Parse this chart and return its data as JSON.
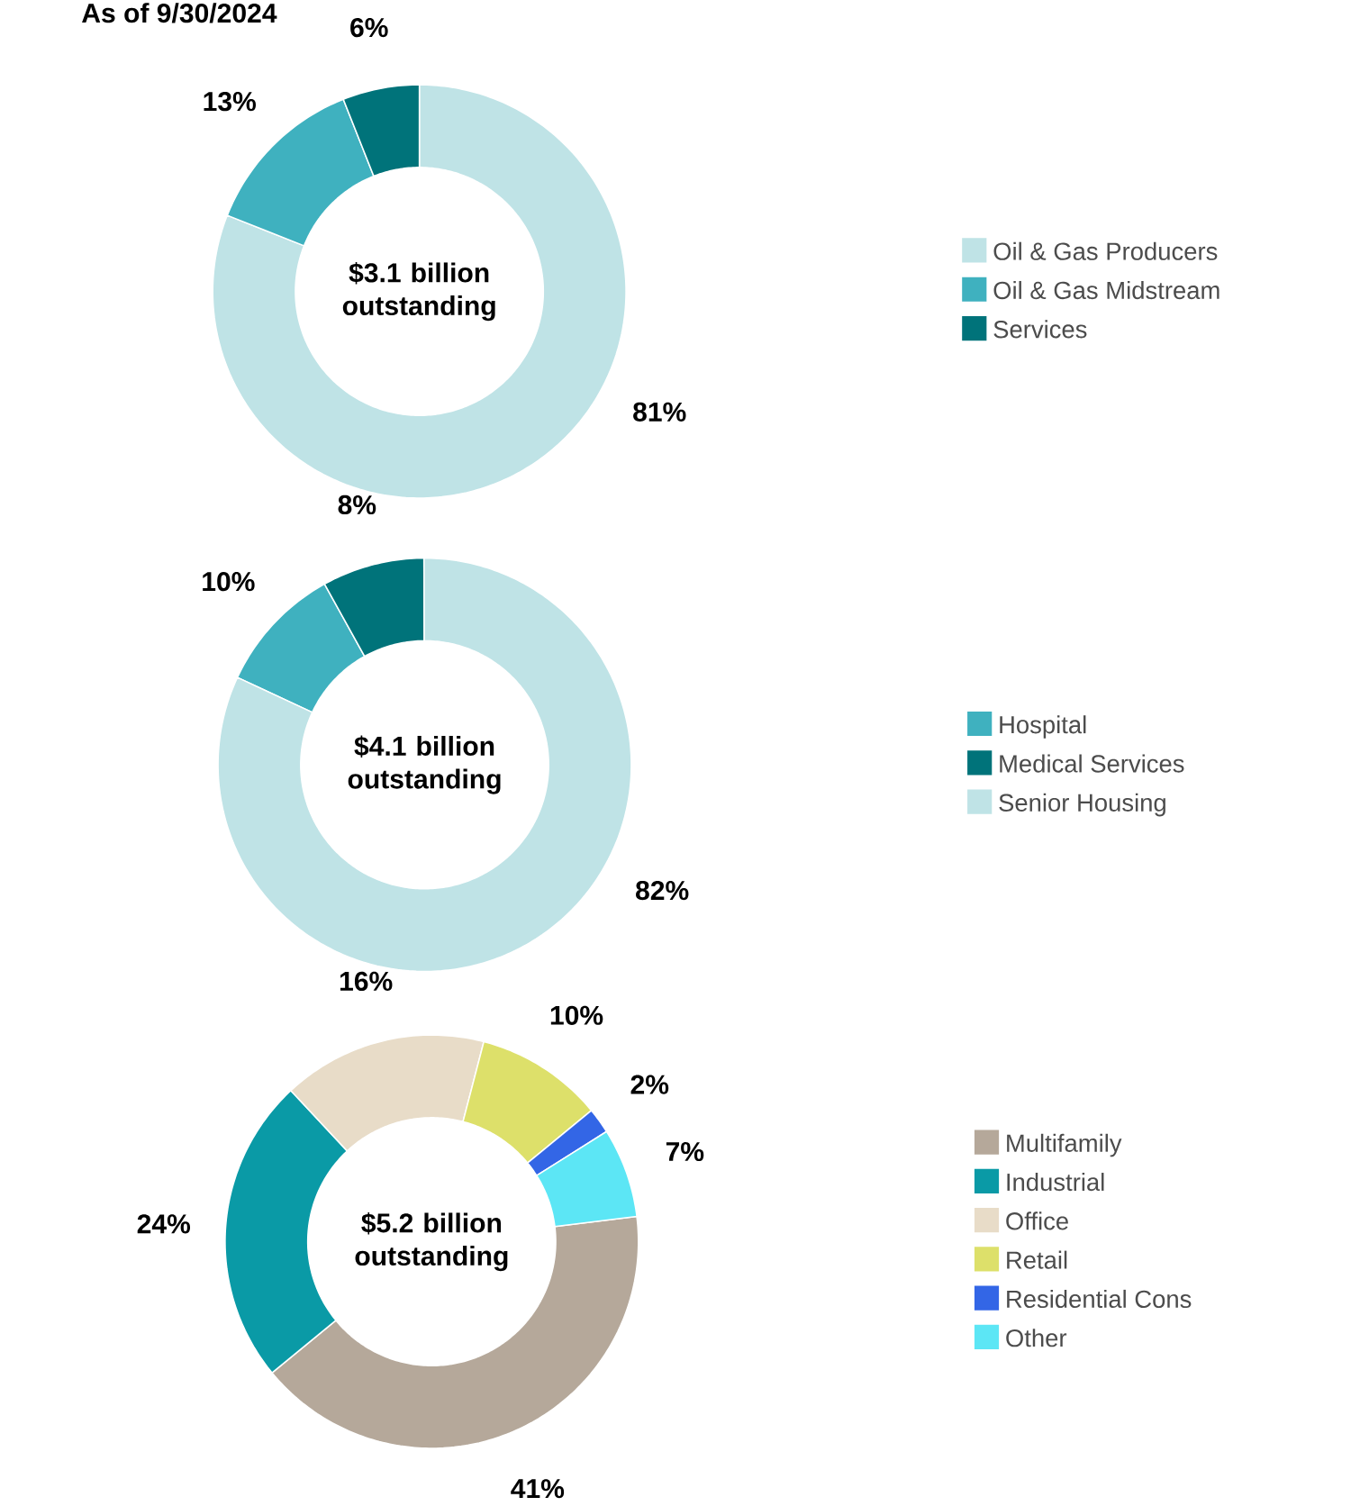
{
  "chart_data": [
    {
      "type": "donut",
      "title": "As of 9/30/2024",
      "categories": [
        "Oil & Gas Producers",
        "Oil & Gas Midstream",
        "Services"
      ],
      "values": [
        81,
        13,
        6
      ],
      "colors": [
        "#bfe3e6",
        "#3fb1bf",
        "#00737a"
      ],
      "value_labels": [
        "81%",
        "13%",
        "6%"
      ],
      "annotations": [
        "$3.1 billion outstanding"
      ],
      "legend": "right"
    },
    {
      "type": "donut",
      "categories": [
        "Hospital",
        "Medical Services",
        "Senior Housing"
      ],
      "values": [
        10,
        8,
        82
      ],
      "colors": [
        "#3fb1bf",
        "#00737a",
        "#bfe3e6"
      ],
      "value_labels": [
        "10%",
        "8%",
        "82%"
      ],
      "annotations": [
        "$4.1 billion outstanding"
      ],
      "legend": "right"
    },
    {
      "type": "donut",
      "categories": [
        "Multifamily",
        "Industrial",
        "Office",
        "Retail",
        "Residential Cons",
        "Other"
      ],
      "values": [
        41,
        24,
        16,
        10,
        2,
        7
      ],
      "colors": [
        "#b5a89a",
        "#0a9aa6",
        "#e8dcc8",
        "#dde06a",
        "#3366e6",
        "#5ce6f5"
      ],
      "value_labels": [
        "41%",
        "24%",
        "16%",
        "10%",
        "2%",
        "7%"
      ],
      "annotations": [
        "$5.2 billion outstanding"
      ],
      "legend": "right"
    }
  ]
}
